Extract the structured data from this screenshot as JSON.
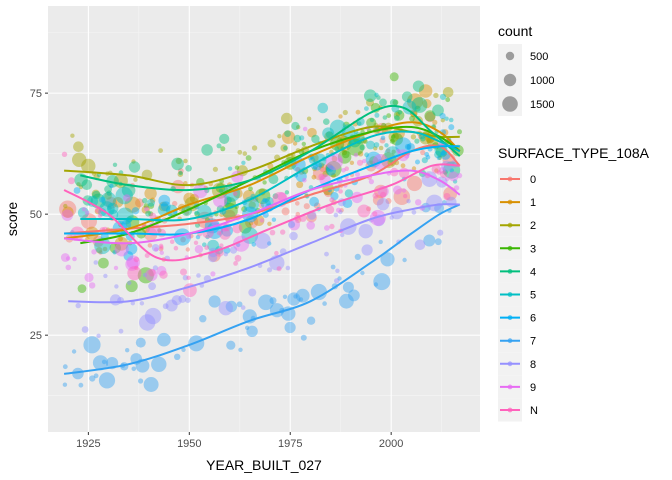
{
  "chart_data": {
    "type": "scatter",
    "xlabel": "YEAR_BUILT_027",
    "ylabel": "score",
    "xlim": [
      1915,
      2022
    ],
    "ylim": [
      5,
      93
    ],
    "x_ticks": [
      1925,
      1950,
      1975,
      2000
    ],
    "y_ticks": [
      25,
      50,
      75
    ],
    "x_tick_labels": [
      "1925",
      "1950",
      "1975",
      "2000"
    ],
    "y_tick_labels": [
      "25",
      "50",
      "75"
    ],
    "grid": true,
    "background": "#ebebeb",
    "legend_position": "right",
    "size_legend": {
      "title": "count",
      "values": [
        500,
        1000,
        1500
      ],
      "labels": [
        "500",
        "1000",
        "1500"
      ]
    },
    "color_legend": {
      "title": "SURFACE_TYPE_108A"
    },
    "series": [
      {
        "name": "0",
        "color": "#F8766D",
        "smooth": [
          [
            1919,
            46
          ],
          [
            1935,
            47
          ],
          [
            1950,
            48
          ],
          [
            1965,
            50
          ],
          [
            1980,
            54
          ],
          [
            1995,
            58
          ],
          [
            2005,
            63
          ],
          [
            2012,
            64
          ],
          [
            2017,
            60
          ]
        ]
      },
      {
        "name": "1",
        "color": "#D89000",
        "smooth": [
          [
            1919,
            45
          ],
          [
            1935,
            47
          ],
          [
            1950,
            52
          ],
          [
            1965,
            56
          ],
          [
            1980,
            62
          ],
          [
            1995,
            67
          ],
          [
            2005,
            69
          ],
          [
            2012,
            67
          ],
          [
            2017,
            63
          ]
        ]
      },
      {
        "name": "2",
        "color": "#A3A500",
        "smooth": [
          [
            1919,
            59
          ],
          [
            1935,
            58
          ],
          [
            1950,
            56
          ],
          [
            1965,
            59
          ],
          [
            1980,
            64
          ],
          [
            1995,
            68
          ],
          [
            2005,
            67
          ],
          [
            2012,
            66
          ],
          [
            2017,
            66
          ]
        ]
      },
      {
        "name": "3",
        "color": "#39B600",
        "smooth": [
          [
            1923,
            44
          ],
          [
            1935,
            46
          ],
          [
            1950,
            51
          ],
          [
            1965,
            57
          ],
          [
            1980,
            63
          ],
          [
            1995,
            67
          ],
          [
            2005,
            68
          ],
          [
            2012,
            66
          ],
          [
            2017,
            63
          ]
        ]
      },
      {
        "name": "4",
        "color": "#00BF7D",
        "smooth": [
          [
            1923,
            58
          ],
          [
            1935,
            56
          ],
          [
            1950,
            55
          ],
          [
            1965,
            57
          ],
          [
            1980,
            63
          ],
          [
            1995,
            71
          ],
          [
            2003,
            72
          ],
          [
            2010,
            67
          ],
          [
            2017,
            62
          ]
        ]
      },
      {
        "name": "5",
        "color": "#00BFC4",
        "smooth": [
          [
            1923,
            49
          ],
          [
            1935,
            49
          ],
          [
            1950,
            49
          ],
          [
            1965,
            53
          ],
          [
            1980,
            60
          ],
          [
            1995,
            66
          ],
          [
            2005,
            67
          ],
          [
            2012,
            65
          ],
          [
            2017,
            63
          ]
        ]
      },
      {
        "name": "6",
        "color": "#00B0F6",
        "smooth": [
          [
            1919,
            46
          ],
          [
            1935,
            46
          ],
          [
            1950,
            46
          ],
          [
            1965,
            49
          ],
          [
            1980,
            55
          ],
          [
            1995,
            60
          ],
          [
            2005,
            63
          ],
          [
            2012,
            64
          ],
          [
            2017,
            64
          ]
        ]
      },
      {
        "name": "7",
        "color": "#35A2F2",
        "smooth": [
          [
            1919,
            17
          ],
          [
            1935,
            19
          ],
          [
            1950,
            23
          ],
          [
            1965,
            28
          ],
          [
            1980,
            32
          ],
          [
            1995,
            40
          ],
          [
            2005,
            46
          ],
          [
            2012,
            50
          ],
          [
            2017,
            52
          ]
        ]
      },
      {
        "name": "8",
        "color": "#9590FF",
        "smooth": [
          [
            1920,
            32
          ],
          [
            1935,
            32
          ],
          [
            1950,
            35
          ],
          [
            1965,
            39
          ],
          [
            1980,
            44
          ],
          [
            1995,
            49
          ],
          [
            2005,
            51
          ],
          [
            2012,
            52
          ],
          [
            2017,
            52
          ]
        ]
      },
      {
        "name": "9",
        "color": "#E76BF3",
        "smooth": [
          [
            1919,
            45
          ],
          [
            1935,
            44
          ],
          [
            1950,
            46
          ],
          [
            1965,
            50
          ],
          [
            1980,
            55
          ],
          [
            1995,
            58
          ],
          [
            2005,
            59
          ],
          [
            2012,
            57
          ],
          [
            2017,
            54
          ]
        ]
      },
      {
        "name": "N",
        "color": "#FF62BC",
        "smooth": [
          [
            1919,
            55
          ],
          [
            1930,
            50
          ],
          [
            1942,
            41
          ],
          [
            1955,
            42
          ],
          [
            1970,
            47
          ],
          [
            1985,
            52
          ],
          [
            2000,
            56
          ],
          [
            2010,
            60
          ],
          [
            2017,
            60
          ]
        ]
      }
    ]
  }
}
